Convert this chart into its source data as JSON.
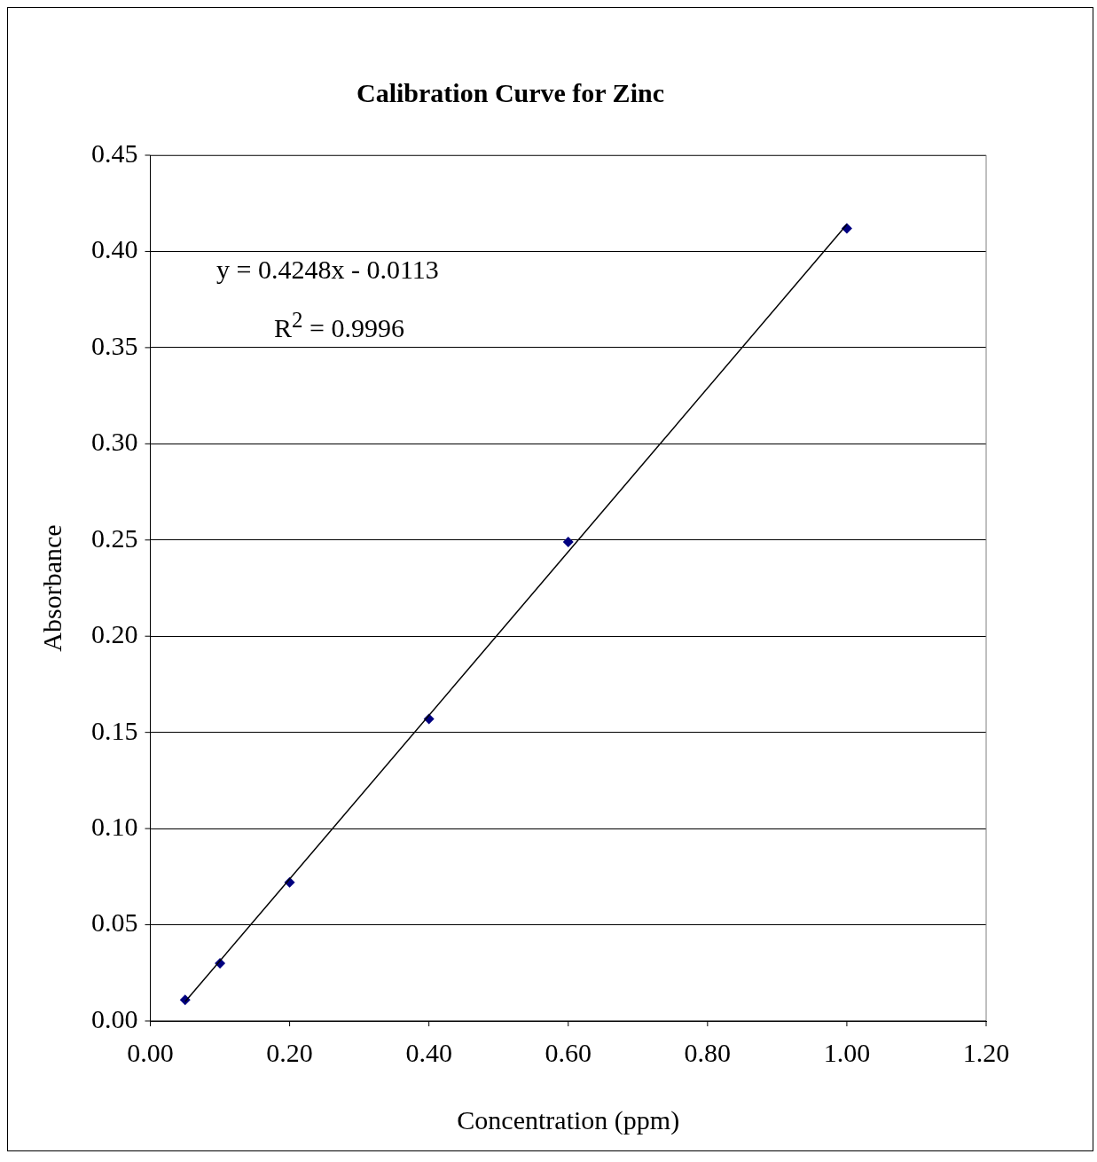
{
  "chart_data": {
    "type": "scatter",
    "title": "Calibration Curve for Zinc",
    "xlabel": "Concentration (ppm)",
    "ylabel": "Absorbance",
    "x": [
      0.05,
      0.1,
      0.2,
      0.4,
      0.6,
      1.0
    ],
    "series": [
      {
        "type": "scatter",
        "color": "#000080",
        "marker": "diamond",
        "values": [
          0.011,
          0.03,
          0.072,
          0.157,
          0.249,
          0.412
        ]
      },
      {
        "type": "line",
        "color": "#000000",
        "marker": "none",
        "x": [
          0.05,
          1.0
        ],
        "values": [
          0.01,
          0.414
        ]
      }
    ],
    "xlim": [
      0,
      1.2
    ],
    "xticks": [
      {
        "value": 0,
        "label": "0.00"
      },
      {
        "value": 0.2,
        "label": "0.20"
      },
      {
        "value": 0.4,
        "label": "0.40"
      },
      {
        "value": 0.6,
        "label": "0.60"
      },
      {
        "value": 0.8,
        "label": "0.80"
      },
      {
        "value": 1.0,
        "label": "1.00"
      },
      {
        "value": 1.2,
        "label": "1.20"
      }
    ],
    "ylim": [
      0,
      0.45
    ],
    "yticks": [
      {
        "value": 0,
        "label": "0.00"
      },
      {
        "value": 0.05,
        "label": "0.05"
      },
      {
        "value": 0.1,
        "label": "0.10"
      },
      {
        "value": 0.15,
        "label": "0.15"
      },
      {
        "value": 0.2,
        "label": "0.20"
      },
      {
        "value": 0.25,
        "label": "0.25"
      },
      {
        "value": 0.3,
        "label": "0.30"
      },
      {
        "value": 0.35,
        "label": "0.35"
      },
      {
        "value": 0.4,
        "label": "0.40"
      },
      {
        "value": 0.45,
        "label": "0.45"
      }
    ],
    "grid": "y",
    "legend": false,
    "annotations": [
      "y = 0.4248x - 0.0113",
      "R$^{2}$ = 0.9996"
    ]
  }
}
